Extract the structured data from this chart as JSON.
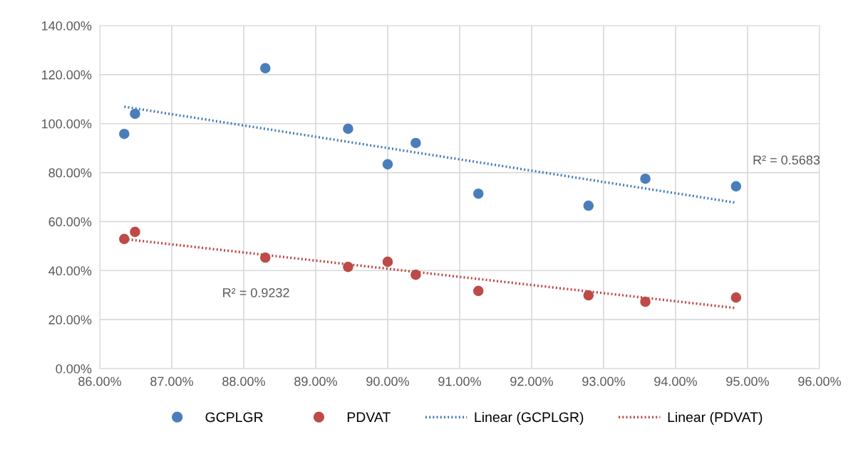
{
  "chart_data": {
    "type": "scatter",
    "marker": "circle",
    "grid": true,
    "legend": "bottom",
    "xlim": [
      86,
      96
    ],
    "ylim": [
      0,
      140
    ],
    "xticks": [
      {
        "value": 86,
        "label": "86.00%"
      },
      {
        "value": 87,
        "label": "87.00%"
      },
      {
        "value": 88,
        "label": "88.00%"
      },
      {
        "value": 89,
        "label": "89.00%"
      },
      {
        "value": 90,
        "label": "90.00%"
      },
      {
        "value": 91,
        "label": "91.00%"
      },
      {
        "value": 92,
        "label": "92.00%"
      },
      {
        "value": 93,
        "label": "93.00%"
      },
      {
        "value": 94,
        "label": "94.00%"
      },
      {
        "value": 95,
        "label": "95.00%"
      },
      {
        "value": 96,
        "label": "96.00%"
      }
    ],
    "yticks": [
      {
        "value": 0,
        "label": "0.00%"
      },
      {
        "value": 20,
        "label": "20.00%"
      },
      {
        "value": 40,
        "label": "40.00%"
      },
      {
        "value": 60,
        "label": "60.00%"
      },
      {
        "value": 80,
        "label": "80.00%"
      },
      {
        "value": 100,
        "label": "100.00%"
      },
      {
        "value": 120,
        "label": "120.00%"
      },
      {
        "value": 140,
        "label": "140.00%"
      }
    ],
    "series": [
      {
        "name": "GCPLGR",
        "color": "#4a7ebb",
        "x": [
          86.34,
          86.49,
          88.3,
          89.45,
          90.0,
          90.39,
          91.26,
          92.79,
          93.58,
          94.84
        ],
        "values": [
          95.8,
          104.0,
          122.6,
          97.9,
          83.4,
          92.1,
          71.4,
          66.5,
          77.5,
          74.4
        ]
      },
      {
        "name": "PDVAT",
        "color": "#be4b48",
        "x": [
          86.34,
          86.49,
          88.3,
          89.45,
          90.0,
          90.39,
          91.26,
          92.79,
          93.58,
          94.84
        ],
        "values": [
          52.9,
          55.8,
          45.3,
          41.5,
          43.6,
          38.3,
          31.7,
          29.9,
          27.3,
          29.0
        ]
      },
      {
        "name": "Linear (GCPLGR)",
        "type": "line",
        "line_style": "dotted",
        "marker": "none",
        "color": "#4a7ebb",
        "x": [
          86.34,
          94.84
        ],
        "values": [
          106.9,
          67.7
        ]
      },
      {
        "name": "Linear (PDVAT)",
        "type": "line",
        "line_style": "dotted",
        "marker": "none",
        "color": "#be4b48",
        "x": [
          86.34,
          94.84
        ],
        "values": [
          52.9,
          24.7
        ]
      }
    ],
    "annotations": [
      "R² = 0.5683",
      "R² = 0.9232"
    ]
  }
}
